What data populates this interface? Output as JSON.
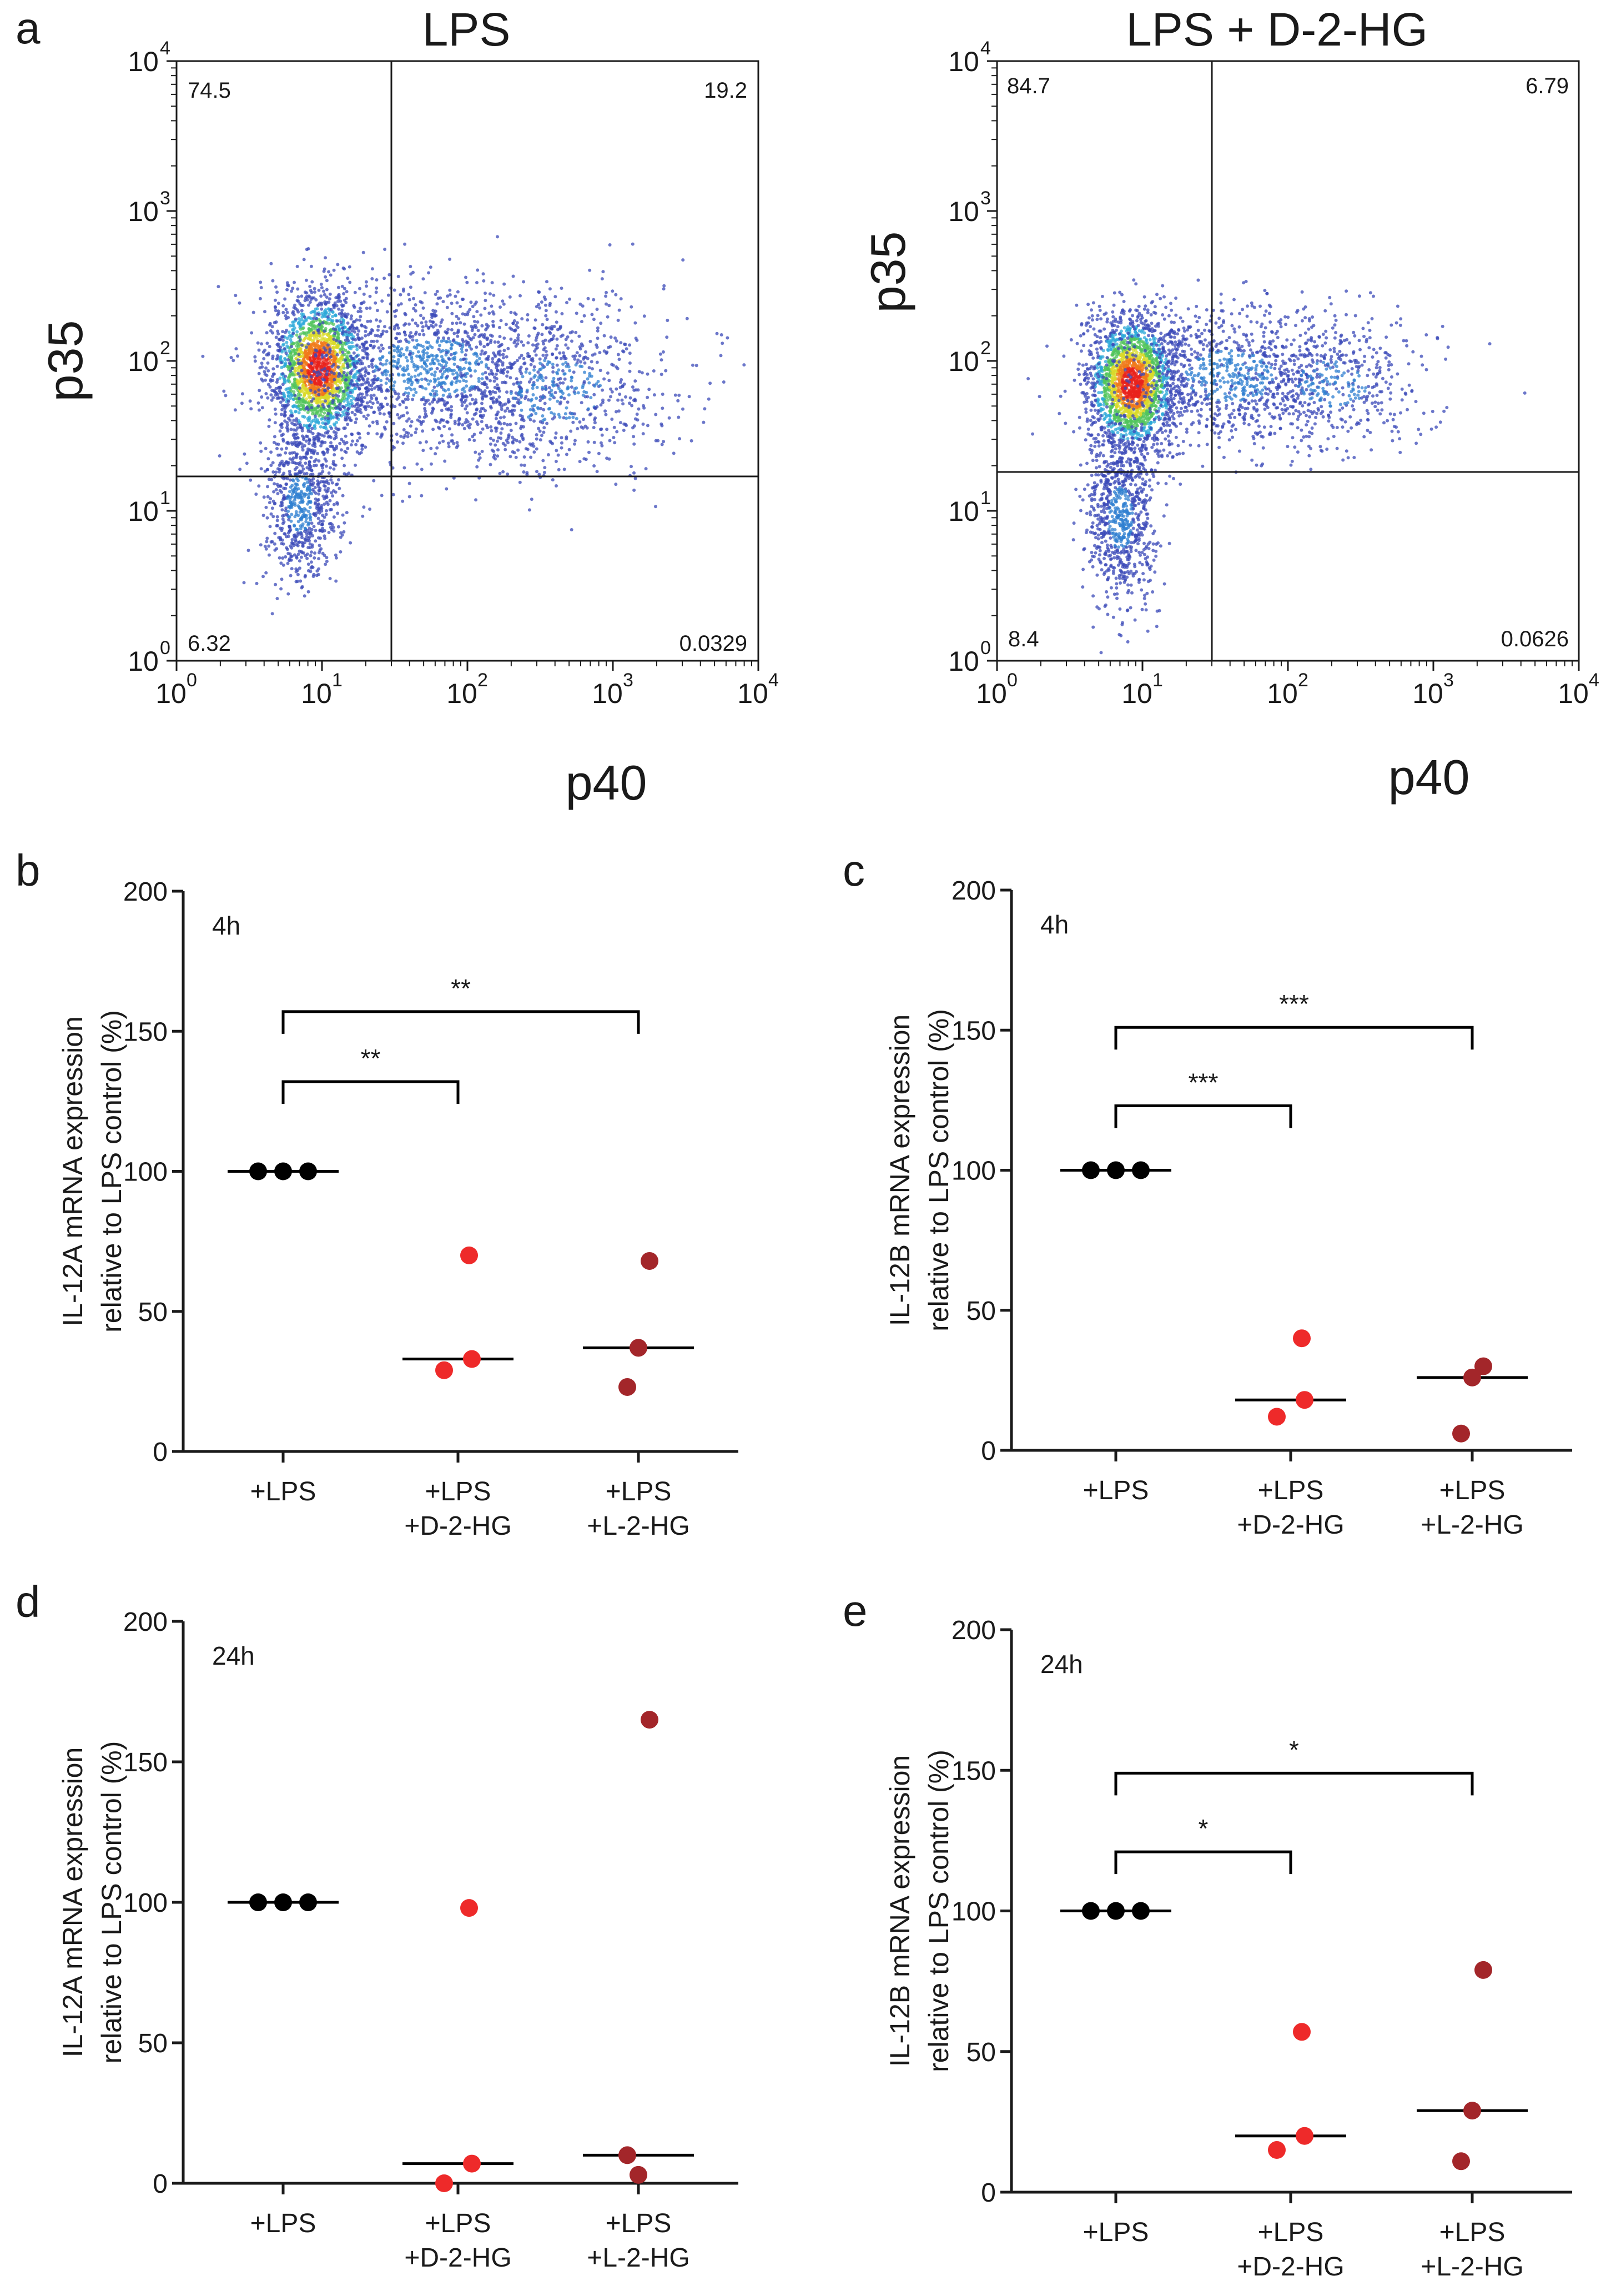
{
  "panel_a": {
    "letter": "a",
    "x_axis_label": "p40",
    "y_axis_label": "p35",
    "tick_base": "10",
    "tick_exponents": [
      "0",
      "1",
      "2",
      "3",
      "4"
    ],
    "plots": [
      {
        "title": "LPS",
        "quadrants": {
          "upper_left": "74.5",
          "upper_right": "19.2",
          "lower_left": "6.32",
          "lower_right": "0.0329"
        }
      },
      {
        "title": "LPS + D-2-HG",
        "quadrants": {
          "upper_left": "84.7",
          "upper_right": "6.79",
          "lower_left": "8.4",
          "lower_right": "0.0626"
        }
      }
    ]
  },
  "colors": {
    "lps": "#000000",
    "d2hg": "#ee2a2a",
    "l2hg": "#a3262a",
    "axis": "#1a1a1a"
  },
  "chart_data": [
    {
      "type": "scatter",
      "panel": "b",
      "timepoint": "4h",
      "ylabel": [
        "IL-12A mRNA expression",
        "relative to LPS control (%)"
      ],
      "ylim": [
        0,
        200
      ],
      "yticks": [
        0,
        50,
        100,
        150,
        200
      ],
      "categories": [
        [
          "+LPS"
        ],
        [
          "+LPS",
          "+D-2-HG"
        ],
        [
          "+LPS",
          "+L-2-HG"
        ]
      ],
      "series": [
        {
          "name": "+LPS",
          "color": "#000000",
          "values": [
            100,
            100,
            100
          ],
          "median": 100
        },
        {
          "name": "+LPS +D-2-HG",
          "color": "#ee2a2a",
          "values": [
            70,
            29,
            33
          ],
          "median": 33
        },
        {
          "name": "+LPS +L-2-HG",
          "color": "#a3262a",
          "values": [
            68,
            37,
            23
          ],
          "median": 37
        }
      ],
      "significance": [
        {
          "from": 0,
          "to": 1,
          "label": "**",
          "y": 132
        },
        {
          "from": 0,
          "to": 2,
          "label": "**",
          "y": 157
        }
      ]
    },
    {
      "type": "scatter",
      "panel": "c",
      "timepoint": "4h",
      "ylabel": [
        "IL-12B mRNA expression",
        "relative to LPS control (%)"
      ],
      "ylim": [
        0,
        200
      ],
      "yticks": [
        0,
        50,
        100,
        150,
        200
      ],
      "categories": [
        [
          "+LPS"
        ],
        [
          "+LPS",
          "+D-2-HG"
        ],
        [
          "+LPS",
          "+L-2-HG"
        ]
      ],
      "series": [
        {
          "name": "+LPS",
          "color": "#000000",
          "values": [
            100,
            100,
            100
          ],
          "median": 100
        },
        {
          "name": "+LPS +D-2-HG",
          "color": "#ee2a2a",
          "values": [
            40,
            12,
            18
          ],
          "median": 18
        },
        {
          "name": "+LPS +L-2-HG",
          "color": "#a3262a",
          "values": [
            30,
            26,
            6
          ],
          "median": 26
        }
      ],
      "significance": [
        {
          "from": 0,
          "to": 1,
          "label": "***",
          "y": 123
        },
        {
          "from": 0,
          "to": 2,
          "label": "***",
          "y": 151
        }
      ]
    },
    {
      "type": "scatter",
      "panel": "d",
      "timepoint": "24h",
      "ylabel": [
        "IL-12A mRNA expression",
        "relative to LPS control (%)"
      ],
      "ylim": [
        0,
        200
      ],
      "yticks": [
        0,
        50,
        100,
        150,
        200
      ],
      "categories": [
        [
          "+LPS"
        ],
        [
          "+LPS",
          "+D-2-HG"
        ],
        [
          "+LPS",
          "+L-2-HG"
        ]
      ],
      "series": [
        {
          "name": "+LPS",
          "color": "#000000",
          "values": [
            100,
            100,
            100
          ],
          "median": 100
        },
        {
          "name": "+LPS +D-2-HG",
          "color": "#ee2a2a",
          "values": [
            98,
            0,
            7
          ],
          "median": 7
        },
        {
          "name": "+LPS +L-2-HG",
          "color": "#a3262a",
          "values": [
            165,
            3,
            10
          ],
          "median": 10
        }
      ],
      "significance": []
    },
    {
      "type": "scatter",
      "panel": "e",
      "timepoint": "24h",
      "ylabel": [
        "IL-12B mRNA expression",
        "relative to LPS control (%)"
      ],
      "ylim": [
        0,
        200
      ],
      "yticks": [
        0,
        50,
        100,
        150,
        200
      ],
      "categories": [
        [
          "+LPS"
        ],
        [
          "+LPS",
          "+D-2-HG"
        ],
        [
          "+LPS",
          "+L-2-HG"
        ]
      ],
      "series": [
        {
          "name": "+LPS",
          "color": "#000000",
          "values": [
            100,
            100,
            100
          ],
          "median": 100
        },
        {
          "name": "+LPS +D-2-HG",
          "color": "#ee2a2a",
          "values": [
            57,
            15,
            20
          ],
          "median": 20
        },
        {
          "name": "+LPS +L-2-HG",
          "color": "#a3262a",
          "values": [
            79,
            29,
            11
          ],
          "median": 29
        }
      ],
      "significance": [
        {
          "from": 0,
          "to": 1,
          "label": "*",
          "y": 121
        },
        {
          "from": 0,
          "to": 2,
          "label": "*",
          "y": 149
        }
      ]
    }
  ]
}
